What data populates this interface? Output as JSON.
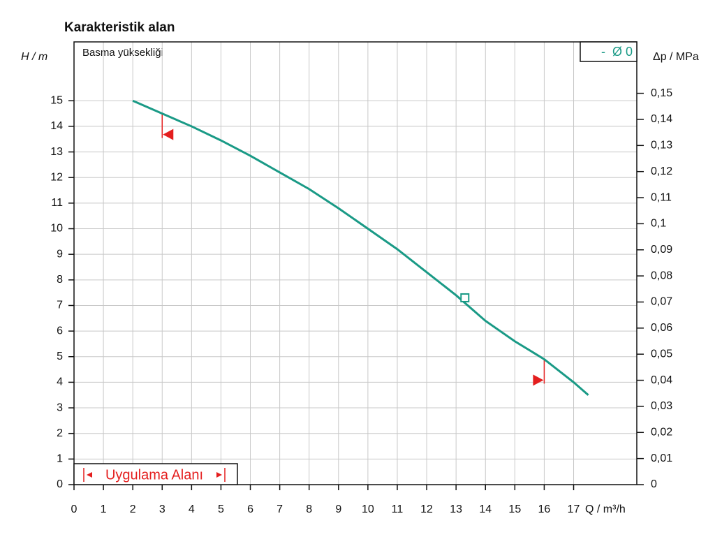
{
  "chart_data": {
    "type": "line",
    "title": "Karakteristik alan",
    "subtitle": "Basma yüksekliği",
    "x_label": "Q / m³/h",
    "y_label": "H / m",
    "y2_label": "Δp / MPa",
    "application_label": "Uygulama Alanı",
    "x": [
      2,
      3,
      4,
      5,
      6,
      7,
      8,
      9,
      10,
      11,
      12,
      13,
      14,
      15,
      16,
      17,
      17.5
    ],
    "series": [
      {
        "name": "-  Ø 0",
        "color": "#1a9a86",
        "values": [
          15,
          14.5,
          14.0,
          13.45,
          12.85,
          12.2,
          11.55,
          10.8,
          10.0,
          9.2,
          8.3,
          7.4,
          6.4,
          5.6,
          4.9,
          4.0,
          3.5
        ]
      }
    ],
    "duty_point": {
      "x": 13.3,
      "y": 7.3
    },
    "operating_limits": {
      "min": 3,
      "max": 16
    },
    "limit_color": "#e41e1e",
    "xlim": [
      0,
      19.15
    ],
    "ylim": [
      0,
      17.3
    ],
    "y2lim": [
      0,
      0.1697
    ],
    "xticks": [
      0,
      1,
      2,
      3,
      4,
      5,
      6,
      7,
      8,
      9,
      10,
      11,
      12,
      13,
      14,
      15,
      16,
      17
    ],
    "yticks": [
      0,
      1,
      2,
      3,
      4,
      5,
      6,
      7,
      8,
      9,
      10,
      11,
      12,
      13,
      14,
      15
    ],
    "y2ticks": [
      0,
      {
        "value": 0.01,
        "label": "0,01"
      },
      {
        "value": 0.02,
        "label": "0,02"
      },
      {
        "value": 0.03,
        "label": "0,03"
      },
      {
        "value": 0.04,
        "label": "0,04"
      },
      {
        "value": 0.05,
        "label": "0,05"
      },
      {
        "value": 0.06,
        "label": "0,06"
      },
      {
        "value": 0.07,
        "label": "0,07"
      },
      {
        "value": 0.08,
        "label": "0,08"
      },
      {
        "value": 0.09,
        "label": "0,09"
      },
      {
        "value": 0.1,
        "label": "0,1"
      },
      {
        "value": 0.11,
        "label": "0,11"
      },
      {
        "value": 0.12,
        "label": "0,12"
      },
      {
        "value": 0.13,
        "label": "0,13"
      },
      {
        "value": 0.14,
        "label": "0,14"
      },
      {
        "value": 0.15,
        "label": "0,15"
      }
    ],
    "grid": true
  }
}
